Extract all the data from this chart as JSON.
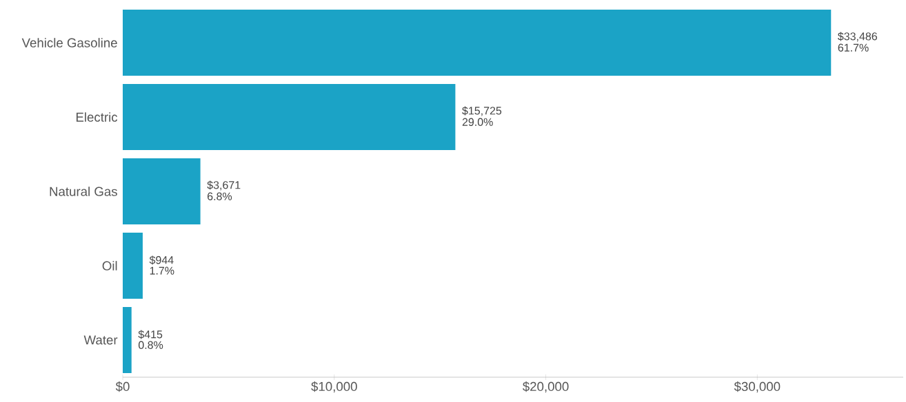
{
  "chart_data": {
    "type": "bar",
    "orientation": "horizontal",
    "categories": [
      "Vehicle Gasoline",
      "Electric",
      "Natural Gas",
      "Oil",
      "Water"
    ],
    "values": [
      33486,
      15725,
      3671,
      944,
      415
    ],
    "color": "#1ba3c6",
    "value_labels": [
      "$33,486",
      "$15,725",
      "$3,671",
      "$944",
      "$415"
    ],
    "annotations": [
      {
        "text": "61.7%",
        "x": 33486,
        "y": "Vehicle Gasoline"
      },
      {
        "text": "29.0%",
        "x": 15725,
        "y": "Electric"
      },
      {
        "text": "6.8%",
        "x": 3671,
        "y": "Natural Gas"
      },
      {
        "text": "1.7%",
        "x": 944,
        "y": "Oil"
      },
      {
        "text": "0.8%",
        "x": 415,
        "y": "Water"
      }
    ],
    "xlim": [
      0,
      36900
    ],
    "xticks": [
      {
        "value": 0,
        "label": "$0"
      },
      {
        "value": 10000,
        "label": "$10,000"
      },
      {
        "value": 20000,
        "label": "$20,000"
      },
      {
        "value": 30000,
        "label": "$30,000"
      }
    ],
    "grid": false
  }
}
